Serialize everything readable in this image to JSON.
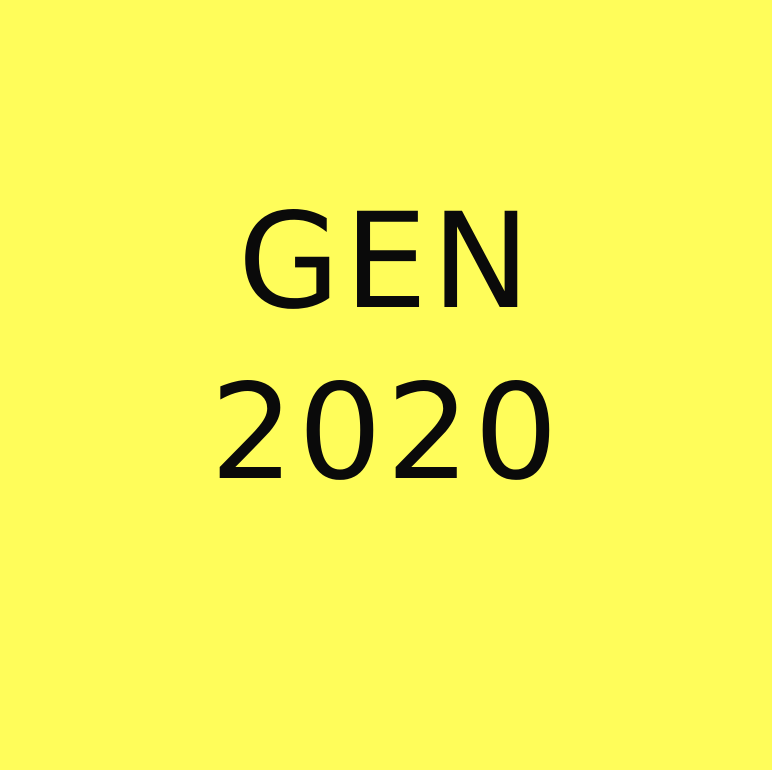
{
  "colors": {
    "background": "#FFFD5A",
    "text": "#0A0A0A"
  },
  "title": {
    "line1": "GEN",
    "line2": "2020"
  }
}
